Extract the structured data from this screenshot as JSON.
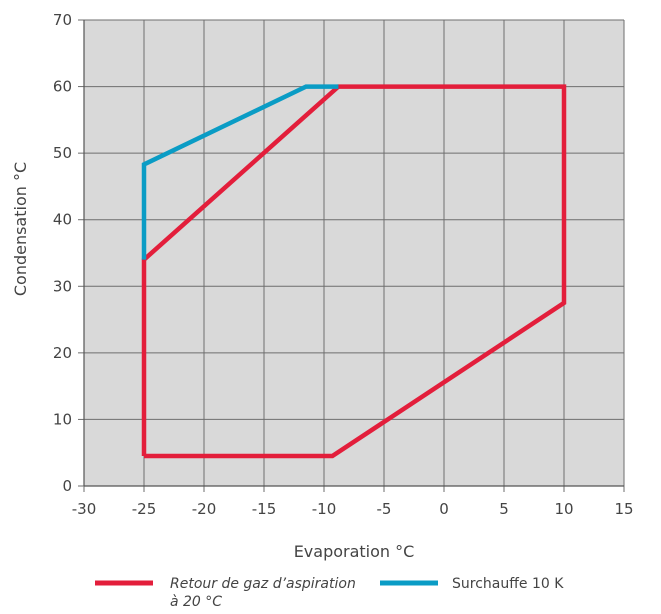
{
  "chart_data": {
    "type": "line",
    "xlabel": "Evaporation °C",
    "ylabel": "Condensation °C",
    "xlim": [
      -30,
      15
    ],
    "ylim": [
      0,
      70
    ],
    "x_ticks": [
      -30,
      -25,
      -20,
      -15,
      -10,
      -5,
      0,
      5,
      10,
      15
    ],
    "y_ticks": [
      0,
      10,
      20,
      30,
      40,
      50,
      60,
      70
    ],
    "grid": true,
    "legend_position": "bottom",
    "series": [
      {
        "name": "Retour de gaz d’aspiration à 20 °C",
        "legend_lines": [
          "Retour de gaz d’aspiration",
          "à 20 °C"
        ],
        "color": "#e31e3b",
        "points": [
          {
            "x": -25,
            "y": 4.5
          },
          {
            "x": -9.3,
            "y": 4.5
          },
          {
            "x": 10,
            "y": 27.5
          },
          {
            "x": 10,
            "y": 60
          },
          {
            "x": -8.8,
            "y": 60
          },
          {
            "x": -25,
            "y": 34
          },
          {
            "x": -25,
            "y": 4.5
          }
        ]
      },
      {
        "name": "Surchauffe 10 K",
        "legend_lines": [
          "Surchauffe 10 K"
        ],
        "color": "#0a9cc5",
        "points": [
          {
            "x": -25,
            "y": 34
          },
          {
            "x": -25,
            "y": 48.3
          },
          {
            "x": -11.5,
            "y": 60
          },
          {
            "x": -8.8,
            "y": 60
          }
        ]
      }
    ]
  }
}
